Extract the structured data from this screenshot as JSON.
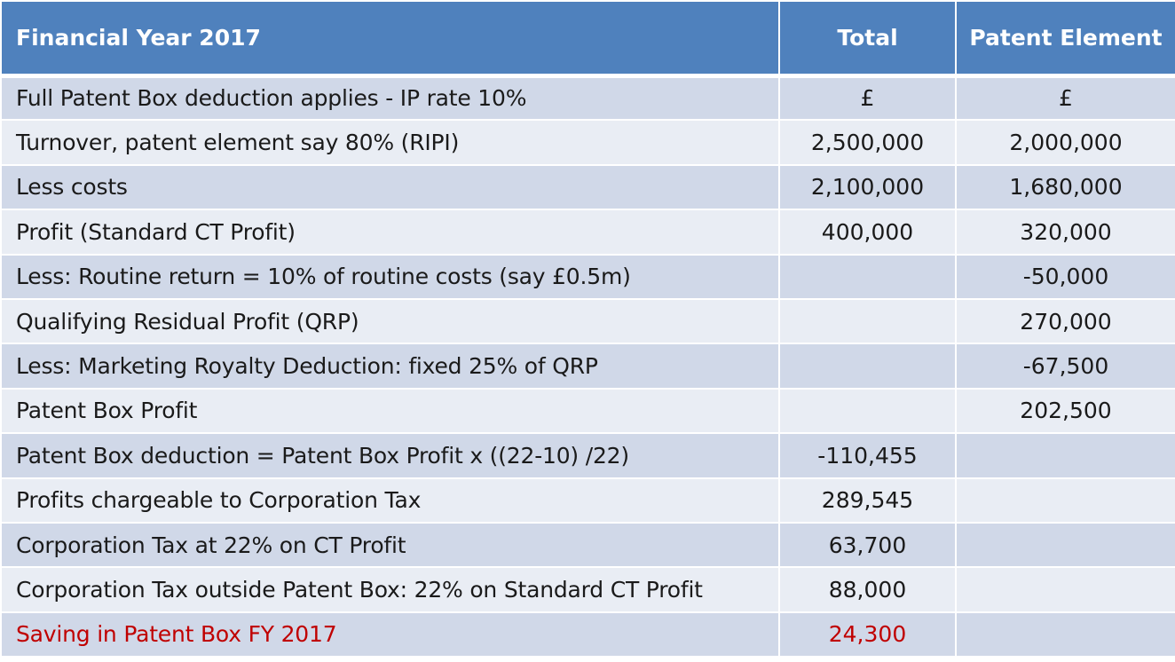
{
  "table": {
    "headers": [
      "Financial Year 2017",
      "Total",
      "Patent Element"
    ],
    "rows": [
      {
        "label": "Full Patent Box deduction applies - IP rate 10%",
        "total": "£",
        "patent": "£"
      },
      {
        "label": "Turnover, patent element say 80% (RIPI)",
        "total": "2,500,000",
        "patent": "2,000,000"
      },
      {
        "label": "Less costs",
        "total": "2,100,000",
        "patent": "1,680,000"
      },
      {
        "label": "Profit  (Standard CT Profit)",
        "total": "400,000",
        "patent": "320,000"
      },
      {
        "label": "Less: Routine return = 10% of routine costs (say £0.5m)",
        "total": "",
        "patent": "-50,000"
      },
      {
        "label": "Qualifying Residual Profit (QRP)",
        "total": "",
        "patent": "270,000"
      },
      {
        "label": "Less: Marketing Royalty Deduction: fixed 25% of QRP",
        "total": "",
        "patent": "-67,500"
      },
      {
        "label": "Patent Box Profit",
        "total": "",
        "patent": "202,500"
      },
      {
        "label": "Patent Box deduction = Patent Box Profit x ((22-10) /22)",
        "total": "-110,455",
        "patent": ""
      },
      {
        "label": "Profits chargeable to Corporation Tax",
        "total": "289,545",
        "patent": ""
      },
      {
        "label": "Corporation Tax at 22% on CT Profit",
        "total": "63,700",
        "patent": ""
      },
      {
        "label": "Corporation Tax outside Patent Box: 22% on Standard CT Profit",
        "total": "88,000",
        "patent": ""
      },
      {
        "label": "Saving in Patent Box FY 2017",
        "total": "24,300",
        "patent": ""
      }
    ]
  },
  "colors": {
    "header_bg": "#4f81bd",
    "row_odd_bg": "#d0d8e8",
    "row_even_bg": "#e9edf4",
    "highlight_text": "#c00000"
  }
}
